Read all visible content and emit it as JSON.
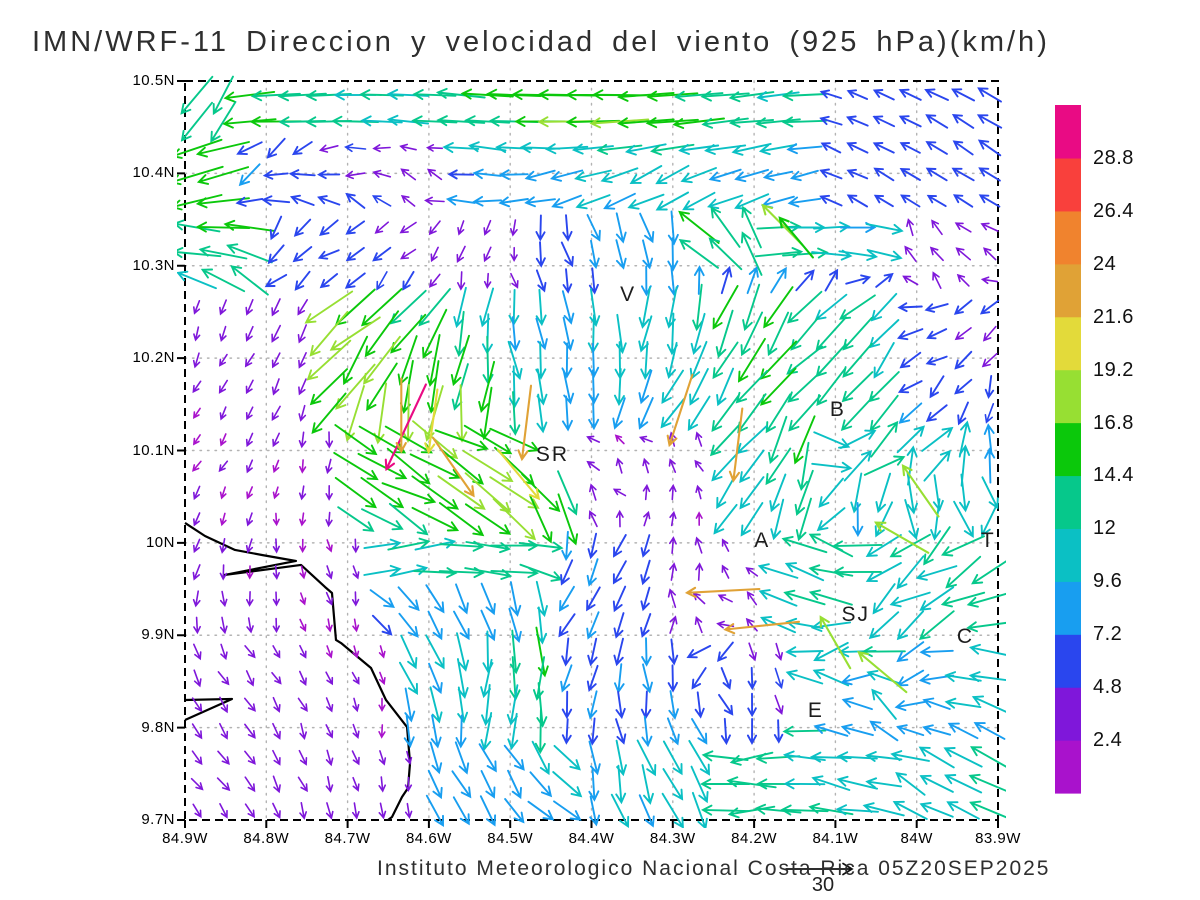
{
  "title": "IMN/WRF-11 Direccion y velocidad del viento (925 hPa)(km/h)",
  "caption": "Instituto Meteorologico Nacional Costa Rica 05Z20SEP2025",
  "reference_vector": {
    "label": "30",
    "value_kmh": 30
  },
  "chart_data": {
    "type": "vector_field",
    "model": "IMN/WRF-11",
    "variable": "Direccion y velocidad del viento",
    "level": "925 hPa",
    "units": "km/h",
    "valid_time": "05Z20SEP2025",
    "x_axis": {
      "ticks": [
        "84.9W",
        "84.8W",
        "84.7W",
        "84.6W",
        "84.5W",
        "84.4W",
        "84.3W",
        "84.2W",
        "84.1W",
        "84W",
        "83.9W"
      ],
      "range_deg_w": [
        84.9,
        83.9
      ]
    },
    "y_axis": {
      "ticks": [
        "10.5N",
        "10.4N",
        "10.3N",
        "10.2N",
        "10.1N",
        "10N",
        "9.9N",
        "9.8N",
        "9.7N"
      ],
      "range_deg_n": [
        10.5,
        9.7
      ]
    },
    "grid": {
      "nx": 31,
      "ny": 28,
      "seed": 20250920
    },
    "colorbar": {
      "units": "km/h",
      "levels": [
        2.4,
        4.8,
        7.2,
        9.6,
        12,
        14.4,
        16.8,
        19.2,
        21.6,
        24,
        26.4,
        28.8
      ],
      "colors": [
        "#A912CC",
        "#7F17DA",
        "#2A46EE",
        "#189EF0",
        "#0BC0C4",
        "#06C88B",
        "#0BC80B",
        "#97DF33",
        "#E3DA3A",
        "#E0A236",
        "#F0832E",
        "#F9403C",
        "#E90B84"
      ]
    },
    "station_labels": [
      {
        "label": "V",
        "lon_w": 84.355,
        "lat_n": 10.268
      },
      {
        "label": "SR",
        "lon_w": 84.448,
        "lat_n": 10.095
      },
      {
        "label": "B",
        "lon_w": 84.097,
        "lat_n": 10.144
      },
      {
        "label": "A",
        "lon_w": 84.19,
        "lat_n": 10.002
      },
      {
        "label": "SJ",
        "lon_w": 84.075,
        "lat_n": 9.922
      },
      {
        "label": "C",
        "lon_w": 83.94,
        "lat_n": 9.898
      },
      {
        "label": "E",
        "lon_w": 84.124,
        "lat_n": 9.818
      },
      {
        "label": "T",
        "lon_w": 83.912,
        "lat_n": 10.002
      }
    ],
    "coastline": {
      "main": [
        [
          0.0,
          0.598
        ],
        [
          0.0246,
          0.6157
        ],
        [
          0.0615,
          0.6346
        ],
        [
          0.0947,
          0.6414
        ],
        [
          0.1365,
          0.6495
        ],
        [
          0.048,
          0.6685
        ],
        [
          0.1427,
          0.6549
        ],
        [
          0.1722,
          0.6847
        ],
        [
          0.1808,
          0.6928
        ],
        [
          0.1857,
          0.7564
        ],
        [
          0.1919,
          0.7605
        ],
        [
          0.2288,
          0.7943
        ],
        [
          0.2472,
          0.8376
        ],
        [
          0.2731,
          0.8742
        ],
        [
          0.2768,
          0.9229
        ],
        [
          0.2743,
          0.9567
        ],
        [
          0.2669,
          0.9689
        ],
        [
          0.2546,
          0.9959
        ],
        [
          0.2497,
          1.0
        ]
      ],
      "inlet": [
        [
          0.0,
          0.8376
        ],
        [
          0.0578,
          0.8362
        ],
        [
          0.0,
          0.8647
        ]
      ]
    },
    "flow_regions_format": "[fx0,fy0,fx1,fy1, direction_deg(0=E,90=N), spread_deg, speed_min_kmh, speed_max_kmh]",
    "flow_regions": [
      [
        0.78,
        0.0,
        1.01,
        0.175,
        157,
        10,
        4.8,
        7.4
      ],
      [
        0.0,
        0.0,
        0.075,
        0.055,
        215,
        25,
        8,
        15
      ],
      [
        0.0,
        0.0,
        1.01,
        0.055,
        181,
        6,
        11,
        17.5
      ],
      [
        0.0,
        0.055,
        0.055,
        0.175,
        190,
        18,
        12,
        16.5
      ],
      [
        0.055,
        0.055,
        0.33,
        0.175,
        205,
        50,
        3,
        8
      ],
      [
        0.33,
        0.055,
        0.78,
        0.115,
        183,
        10,
        8,
        13
      ],
      [
        0.33,
        0.115,
        0.78,
        0.175,
        188,
        18,
        6,
        11
      ],
      [
        0.0,
        0.175,
        0.095,
        0.27,
        170,
        30,
        9,
        16
      ],
      [
        0.095,
        0.175,
        0.42,
        0.29,
        255,
        40,
        2.5,
        6.5
      ],
      [
        0.42,
        0.175,
        0.6,
        0.29,
        262,
        28,
        5,
        9.5
      ],
      [
        0.6,
        0.175,
        0.72,
        0.245,
        120,
        28,
        8,
        15
      ],
      [
        0.72,
        0.175,
        0.88,
        0.245,
        10,
        18,
        8,
        15
      ],
      [
        0.6,
        0.245,
        0.88,
        0.29,
        85,
        55,
        4,
        8
      ],
      [
        0.88,
        0.175,
        1.01,
        0.29,
        170,
        55,
        3,
        7
      ],
      [
        0.0,
        0.27,
        0.165,
        0.5,
        263,
        22,
        2,
        4.8
      ],
      [
        0.165,
        0.29,
        0.4,
        0.47,
        240,
        28,
        9,
        18.5
      ],
      [
        0.4,
        0.29,
        0.56,
        0.47,
        261,
        20,
        8,
        16
      ],
      [
        0.56,
        0.29,
        0.76,
        0.47,
        255,
        24,
        8,
        16
      ],
      [
        0.76,
        0.29,
        0.88,
        0.47,
        242,
        24,
        8,
        14
      ],
      [
        0.88,
        0.29,
        1.01,
        0.47,
        215,
        45,
        4,
        9
      ],
      [
        0.0,
        0.5,
        0.2,
        0.62,
        258,
        25,
        2,
        4.2
      ],
      [
        0.165,
        0.47,
        0.2,
        0.5,
        260,
        25,
        2,
        4.8
      ],
      [
        0.2,
        0.47,
        0.5,
        0.62,
        308,
        25,
        10,
        18
      ],
      [
        0.5,
        0.47,
        0.64,
        0.62,
        165,
        70,
        2,
        5
      ],
      [
        0.64,
        0.47,
        0.78,
        0.62,
        262,
        30,
        9,
        16
      ],
      [
        0.78,
        0.47,
        1.01,
        0.545,
        20,
        60,
        6,
        13
      ],
      [
        0.78,
        0.545,
        1.01,
        0.62,
        210,
        70,
        5,
        12
      ],
      [
        0.0,
        0.62,
        0.22,
        0.76,
        258,
        28,
        2,
        4.2
      ],
      [
        0.22,
        0.62,
        0.46,
        0.695,
        355,
        20,
        8,
        14
      ],
      [
        0.22,
        0.695,
        0.46,
        0.76,
        300,
        25,
        6,
        11
      ],
      [
        0.46,
        0.62,
        0.58,
        0.76,
        272,
        28,
        4,
        8
      ],
      [
        0.58,
        0.62,
        0.7,
        0.76,
        135,
        75,
        2.5,
        6
      ],
      [
        0.7,
        0.62,
        0.83,
        0.76,
        150,
        30,
        10,
        17.5
      ],
      [
        0.83,
        0.62,
        1.01,
        0.76,
        178,
        45,
        7,
        14
      ],
      [
        0.0,
        0.76,
        0.25,
        0.88,
        282,
        22,
        2,
        4
      ],
      [
        0.25,
        0.76,
        0.46,
        0.88,
        295,
        30,
        8,
        16
      ],
      [
        0.46,
        0.76,
        0.6,
        0.88,
        280,
        28,
        4,
        8
      ],
      [
        0.6,
        0.76,
        0.74,
        0.88,
        230,
        85,
        3,
        9
      ],
      [
        0.74,
        0.76,
        0.88,
        0.88,
        115,
        70,
        8,
        17
      ],
      [
        0.88,
        0.76,
        1.01,
        0.88,
        185,
        40,
        6,
        12
      ],
      [
        0.0,
        0.88,
        0.3,
        1.01,
        293,
        20,
        2,
        4
      ],
      [
        0.3,
        0.88,
        0.5,
        1.01,
        318,
        25,
        7.5,
        13
      ],
      [
        0.5,
        0.88,
        0.65,
        1.01,
        275,
        25,
        6,
        12
      ],
      [
        0.65,
        0.88,
        0.82,
        1.01,
        162,
        25,
        9,
        15
      ],
      [
        0.82,
        0.88,
        1.01,
        1.01,
        172,
        30,
        9.5,
        16
      ]
    ],
    "default_region": [
      260,
      40,
      2,
      5
    ],
    "special_vectors_format": "[fx, fy, direction_deg, speed_kmh]",
    "special_vectors": [
      [
        0.272,
        0.468,
        245,
        29.5
      ],
      [
        0.266,
        0.452,
        270,
        22.6
      ],
      [
        0.305,
        0.46,
        262,
        19.4
      ],
      [
        0.42,
        0.462,
        263,
        23.0
      ],
      [
        0.61,
        0.445,
        252,
        23.0
      ],
      [
        0.68,
        0.492,
        263,
        22.5
      ],
      [
        0.33,
        0.522,
        305,
        21.8
      ],
      [
        0.41,
        0.532,
        310,
        19.5
      ],
      [
        0.71,
        0.737,
        186,
        23.0
      ],
      [
        0.662,
        0.69,
        183,
        22.5
      ],
      [
        0.735,
        0.195,
        135,
        17.0
      ],
      [
        0.752,
        0.212,
        130,
        15.5
      ],
      [
        0.905,
        0.555,
        125,
        19.0
      ],
      [
        0.882,
        0.618,
        150,
        18.5
      ],
      [
        0.858,
        0.8,
        140,
        19.0
      ],
      [
        0.8,
        0.76,
        120,
        18.0
      ]
    ]
  }
}
